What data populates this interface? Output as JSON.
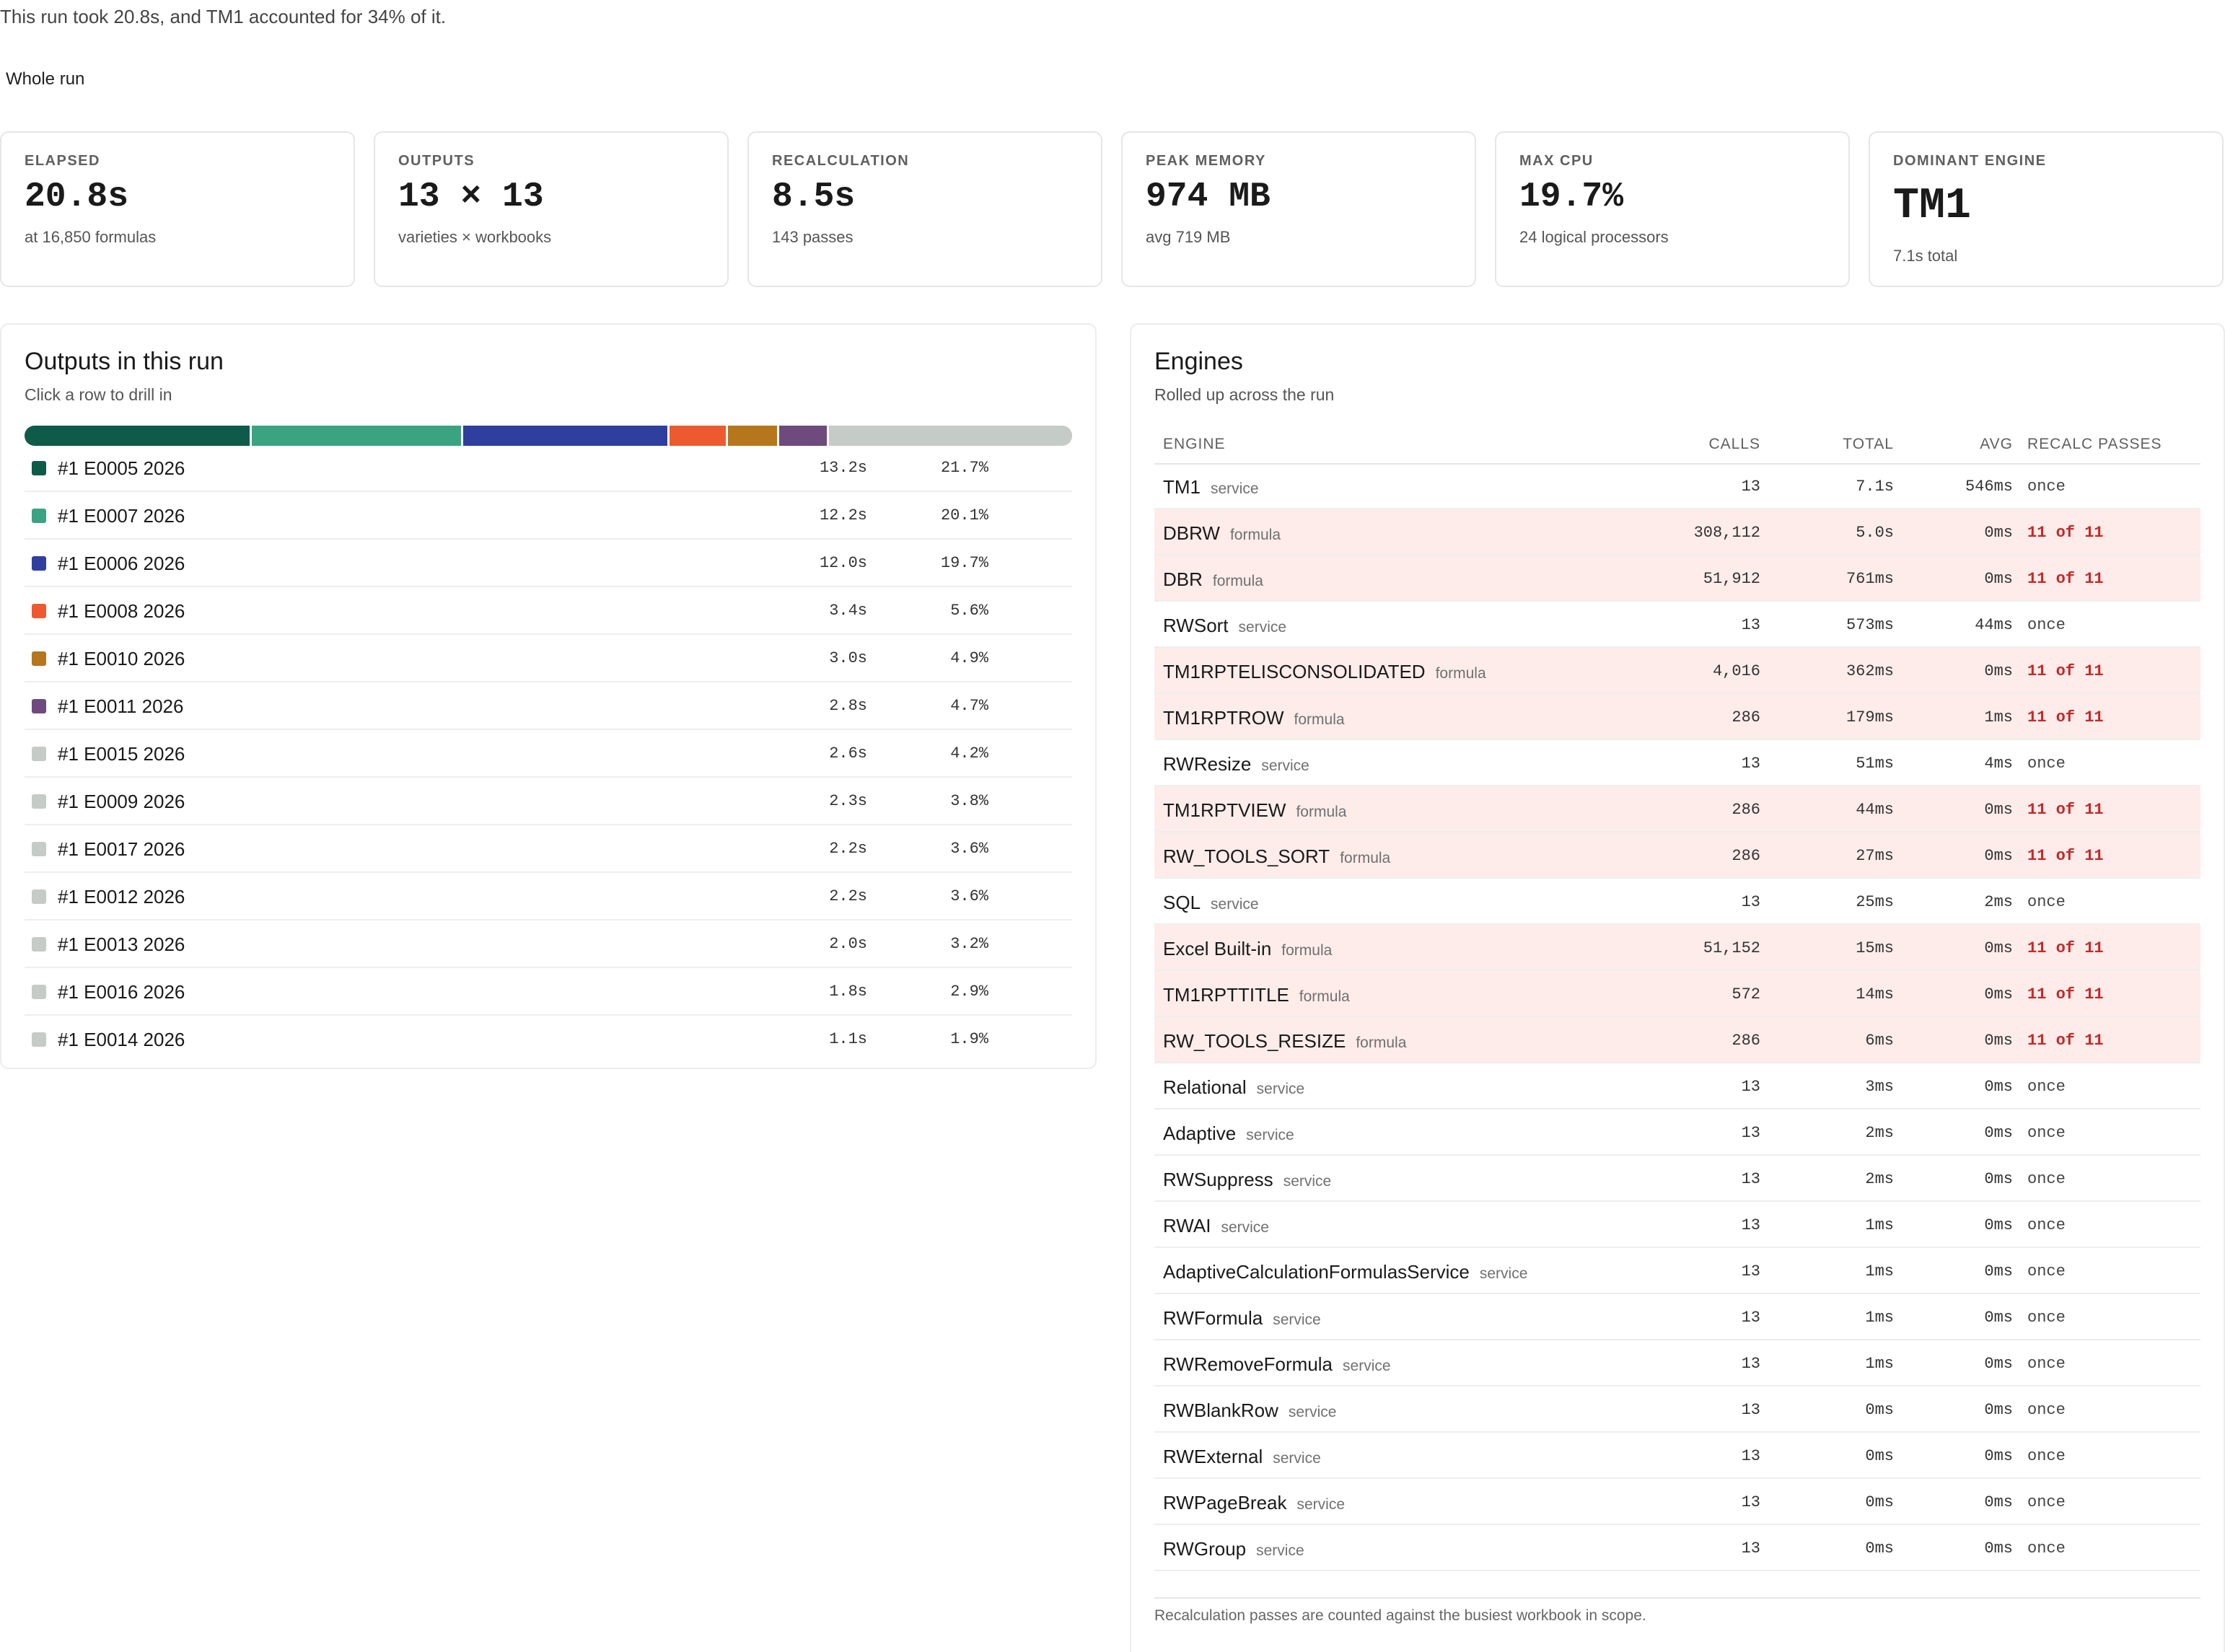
{
  "headline": "This run took 20.8s, and TM1 accounted for 34% of it.",
  "scope": "Whole run",
  "cards": [
    {
      "label": "ELAPSED",
      "value": "20.8s",
      "sub": "at 16,850 formulas"
    },
    {
      "label": "OUTPUTS",
      "value": "13 × 13",
      "sub": "varieties × workbooks"
    },
    {
      "label": "RECALCULATION",
      "value": "8.5s",
      "sub": "143 passes"
    },
    {
      "label": "PEAK MEMORY",
      "value": "974 MB",
      "sub": "avg 719 MB"
    },
    {
      "label": "MAX CPU",
      "value": "19.7%",
      "sub": "24 logical processors"
    },
    {
      "label": "DOMINANT ENGINE",
      "value": "TM1",
      "sub": "7.1s total"
    }
  ],
  "outputs": {
    "title": "Outputs in this run",
    "subtitle": "Click a row to drill in",
    "rows": [
      {
        "name": "#1 E0005 2026",
        "time": "13.2s",
        "pct": "21.7%",
        "share": 21.7,
        "color": "#0e5b4a"
      },
      {
        "name": "#1 E0007 2026",
        "time": "12.2s",
        "pct": "20.1%",
        "share": 20.1,
        "color": "#3aa37f"
      },
      {
        "name": "#1 E0006 2026",
        "time": "12.0s",
        "pct": "19.7%",
        "share": 19.7,
        "color": "#2f3f9e"
      },
      {
        "name": "#1 E0008 2026",
        "time": "3.4s",
        "pct": "5.6%",
        "share": 5.6,
        "color": "#ee5a2f"
      },
      {
        "name": "#1 E0010 2026",
        "time": "3.0s",
        "pct": "4.9%",
        "share": 4.9,
        "color": "#b5761c"
      },
      {
        "name": "#1 E0011 2026",
        "time": "2.8s",
        "pct": "4.7%",
        "share": 4.7,
        "color": "#6e4a7e"
      },
      {
        "name": "#1 E0015 2026",
        "time": "2.6s",
        "pct": "4.2%",
        "share": 4.2,
        "color": "#c5cbc7"
      },
      {
        "name": "#1 E0009 2026",
        "time": "2.3s",
        "pct": "3.8%",
        "share": 3.8,
        "color": "#c5cbc7"
      },
      {
        "name": "#1 E0017 2026",
        "time": "2.2s",
        "pct": "3.6%",
        "share": 3.6,
        "color": "#c5cbc7"
      },
      {
        "name": "#1 E0012 2026",
        "time": "2.2s",
        "pct": "3.6%",
        "share": 3.6,
        "color": "#c5cbc7"
      },
      {
        "name": "#1 E0013 2026",
        "time": "2.0s",
        "pct": "3.2%",
        "share": 3.2,
        "color": "#c5cbc7"
      },
      {
        "name": "#1 E0016 2026",
        "time": "1.8s",
        "pct": "2.9%",
        "share": 2.9,
        "color": "#c5cbc7"
      },
      {
        "name": "#1 E0014 2026",
        "time": "1.1s",
        "pct": "1.9%",
        "share": 1.9,
        "color": "#c5cbc7"
      }
    ]
  },
  "engines": {
    "title": "Engines",
    "subtitle": "Rolled up across the run",
    "headers": {
      "engine": "ENGINE",
      "calls": "CALLS",
      "total": "TOTAL",
      "avg": "AVG",
      "recalc": "RECALC PASSES"
    },
    "rows": [
      {
        "name": "TM1",
        "kind": "service",
        "calls": "13",
        "total": "7.1s",
        "avg": "546ms",
        "recalc": "once",
        "hl": false
      },
      {
        "name": "DBRW",
        "kind": "formula",
        "calls": "308,112",
        "total": "5.0s",
        "avg": "0ms",
        "recalc": "11 of 11",
        "hl": true
      },
      {
        "name": "DBR",
        "kind": "formula",
        "calls": "51,912",
        "total": "761ms",
        "avg": "0ms",
        "recalc": "11 of 11",
        "hl": true
      },
      {
        "name": "RWSort",
        "kind": "service",
        "calls": "13",
        "total": "573ms",
        "avg": "44ms",
        "recalc": "once",
        "hl": false
      },
      {
        "name": "TM1RPTELISCONSOLIDATED",
        "kind": "formula",
        "calls": "4,016",
        "total": "362ms",
        "avg": "0ms",
        "recalc": "11 of 11",
        "hl": true
      },
      {
        "name": "TM1RPTROW",
        "kind": "formula",
        "calls": "286",
        "total": "179ms",
        "avg": "1ms",
        "recalc": "11 of 11",
        "hl": true
      },
      {
        "name": "RWResize",
        "kind": "service",
        "calls": "13",
        "total": "51ms",
        "avg": "4ms",
        "recalc": "once",
        "hl": false
      },
      {
        "name": "TM1RPTVIEW",
        "kind": "formula",
        "calls": "286",
        "total": "44ms",
        "avg": "0ms",
        "recalc": "11 of 11",
        "hl": true
      },
      {
        "name": "RW_TOOLS_SORT",
        "kind": "formula",
        "calls": "286",
        "total": "27ms",
        "avg": "0ms",
        "recalc": "11 of 11",
        "hl": true
      },
      {
        "name": "SQL",
        "kind": "service",
        "calls": "13",
        "total": "25ms",
        "avg": "2ms",
        "recalc": "once",
        "hl": false
      },
      {
        "name": "Excel Built-in",
        "kind": "formula",
        "calls": "51,152",
        "total": "15ms",
        "avg": "0ms",
        "recalc": "11 of 11",
        "hl": true
      },
      {
        "name": "TM1RPTTITLE",
        "kind": "formula",
        "calls": "572",
        "total": "14ms",
        "avg": "0ms",
        "recalc": "11 of 11",
        "hl": true
      },
      {
        "name": "RW_TOOLS_RESIZE",
        "kind": "formula",
        "calls": "286",
        "total": "6ms",
        "avg": "0ms",
        "recalc": "11 of 11",
        "hl": true
      },
      {
        "name": "Relational",
        "kind": "service",
        "calls": "13",
        "total": "3ms",
        "avg": "0ms",
        "recalc": "once",
        "hl": false
      },
      {
        "name": "Adaptive",
        "kind": "service",
        "calls": "13",
        "total": "2ms",
        "avg": "0ms",
        "recalc": "once",
        "hl": false
      },
      {
        "name": "RWSuppress",
        "kind": "service",
        "calls": "13",
        "total": "2ms",
        "avg": "0ms",
        "recalc": "once",
        "hl": false
      },
      {
        "name": "RWAI",
        "kind": "service",
        "calls": "13",
        "total": "1ms",
        "avg": "0ms",
        "recalc": "once",
        "hl": false
      },
      {
        "name": "AdaptiveCalculationFormulasService",
        "kind": "service",
        "calls": "13",
        "total": "1ms",
        "avg": "0ms",
        "recalc": "once",
        "hl": false
      },
      {
        "name": "RWFormula",
        "kind": "service",
        "calls": "13",
        "total": "1ms",
        "avg": "0ms",
        "recalc": "once",
        "hl": false
      },
      {
        "name": "RWRemoveFormula",
        "kind": "service",
        "calls": "13",
        "total": "1ms",
        "avg": "0ms",
        "recalc": "once",
        "hl": false
      },
      {
        "name": "RWBlankRow",
        "kind": "service",
        "calls": "13",
        "total": "0ms",
        "avg": "0ms",
        "recalc": "once",
        "hl": false
      },
      {
        "name": "RWExternal",
        "kind": "service",
        "calls": "13",
        "total": "0ms",
        "avg": "0ms",
        "recalc": "once",
        "hl": false
      },
      {
        "name": "RWPageBreak",
        "kind": "service",
        "calls": "13",
        "total": "0ms",
        "avg": "0ms",
        "recalc": "once",
        "hl": false
      },
      {
        "name": "RWGroup",
        "kind": "service",
        "calls": "13",
        "total": "0ms",
        "avg": "0ms",
        "recalc": "once",
        "hl": false
      }
    ],
    "footnote": "Recalculation passes are counted against the busiest workbook in scope."
  }
}
